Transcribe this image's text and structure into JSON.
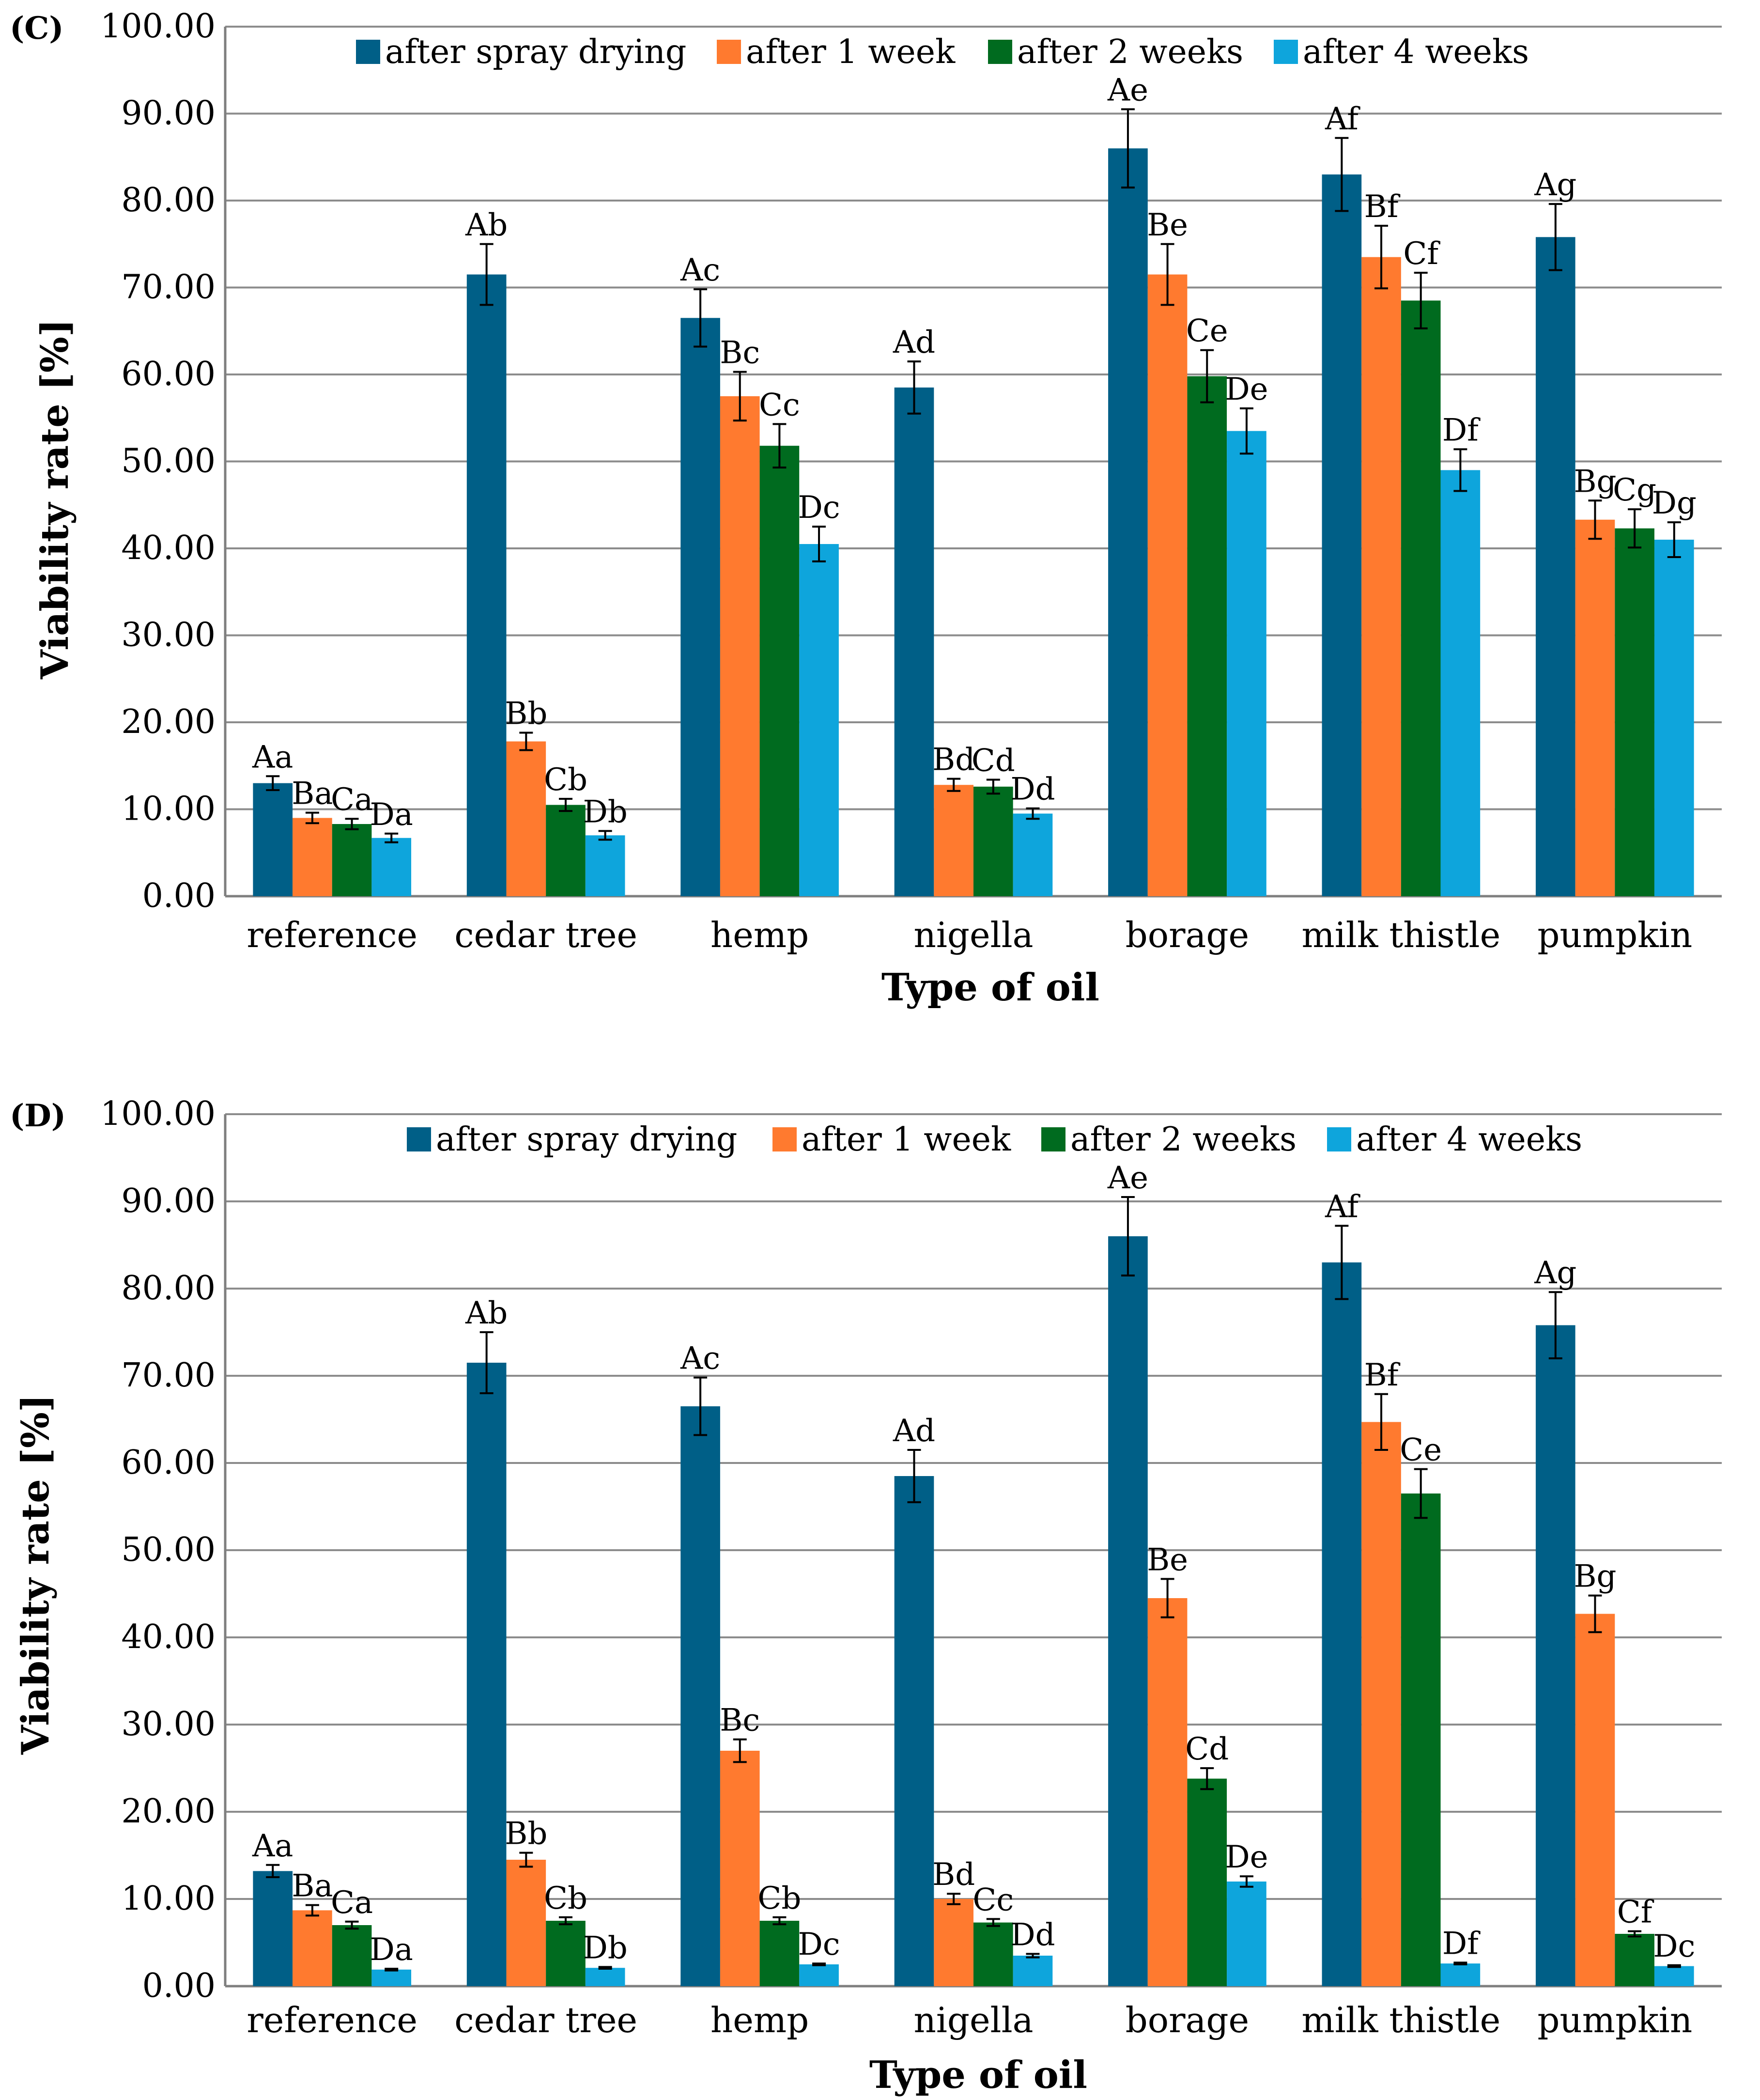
{
  "chart_data": [
    {
      "type": "bar",
      "panel_label": "(C)",
      "categories": [
        "reference",
        "cedar tree",
        "hemp",
        "nigella",
        "borage",
        "milk thistle",
        "pumpkin"
      ],
      "series": [
        {
          "name": "after spray drying",
          "color": "#005f87",
          "values": [
            13.0,
            71.5,
            66.5,
            58.5,
            86.0,
            83.0,
            75.8
          ],
          "errors": [
            0.8,
            3.5,
            3.3,
            3.0,
            4.5,
            4.2,
            3.8
          ],
          "labels": [
            "Aa",
            "Ab",
            "Ac",
            "Ad",
            "Ae",
            "Af",
            "Ag"
          ]
        },
        {
          "name": "after 1 week",
          "color": "#ff7a2f",
          "values": [
            9.0,
            17.8,
            57.5,
            12.8,
            71.5,
            73.5,
            43.3
          ],
          "errors": [
            0.6,
            1.0,
            2.8,
            0.7,
            3.5,
            3.6,
            2.2
          ],
          "labels": [
            "Ba",
            "Bb",
            "Bc",
            "Bd",
            "Be",
            "Bf",
            "Bg"
          ]
        },
        {
          "name": "after 2 weeks",
          "color": "#006b1f",
          "values": [
            8.3,
            10.5,
            51.8,
            12.6,
            59.8,
            68.5,
            42.3
          ],
          "errors": [
            0.6,
            0.7,
            2.5,
            0.8,
            3.0,
            3.2,
            2.2
          ],
          "labels": [
            "Ca",
            "Cb",
            "Cc",
            "Cd",
            "Ce",
            "Cf",
            "Cg"
          ]
        },
        {
          "name": "after 4 weeks",
          "color": "#0ea5dc",
          "values": [
            6.7,
            7.0,
            40.5,
            9.5,
            53.5,
            49.0,
            41.0
          ],
          "errors": [
            0.5,
            0.5,
            2.0,
            0.6,
            2.6,
            2.4,
            2.0
          ],
          "labels": [
            "Da",
            "Db",
            "Dc",
            "Dd",
            "De",
            "Df",
            "Dg"
          ]
        }
      ],
      "xlabel": "Type of oil",
      "ylabel": "Viability rate [%]",
      "ylim": [
        0,
        100
      ],
      "yticks": [
        "0.00",
        "10.00",
        "20.00",
        "30.00",
        "40.00",
        "50.00",
        "60.00",
        "70.00",
        "80.00",
        "90.00",
        "100.00"
      ],
      "grid": true,
      "legend": "top"
    },
    {
      "type": "bar",
      "panel_label": "(D)",
      "categories": [
        "reference",
        "cedar tree",
        "hemp",
        "nigella",
        "borage",
        "milk thistle",
        "pumpkin"
      ],
      "series": [
        {
          "name": "after spray drying",
          "color": "#005f87",
          "values": [
            13.2,
            71.5,
            66.5,
            58.5,
            86.0,
            83.0,
            75.8
          ],
          "errors": [
            0.7,
            3.5,
            3.3,
            3.0,
            4.5,
            4.2,
            3.8
          ],
          "labels": [
            "Aa",
            "Ab",
            "Ac",
            "Ad",
            "Ae",
            "Af",
            "Ag"
          ]
        },
        {
          "name": "after 1 week",
          "color": "#ff7a2f",
          "values": [
            8.7,
            14.5,
            27.0,
            10.0,
            44.5,
            64.7,
            42.7
          ],
          "errors": [
            0.6,
            0.8,
            1.3,
            0.6,
            2.2,
            3.2,
            2.1
          ],
          "labels": [
            "Ba",
            "Bb",
            "Bc",
            "Bd",
            "Be",
            "Bf",
            "Bg"
          ]
        },
        {
          "name": "after 2 weeks",
          "color": "#006b1f",
          "values": [
            7.0,
            7.5,
            7.5,
            7.3,
            23.8,
            56.5,
            6.0
          ],
          "errors": [
            0.4,
            0.4,
            0.4,
            0.4,
            1.2,
            2.8,
            0.3
          ],
          "labels": [
            "Ca",
            "Cb",
            "Cb",
            "Cc",
            "Cd",
            "Ce",
            "Cf"
          ]
        },
        {
          "name": "after 4 weeks",
          "color": "#0ea5dc",
          "values": [
            1.9,
            2.1,
            2.5,
            3.5,
            12.0,
            2.6,
            2.3
          ],
          "errors": [
            0.1,
            0.1,
            0.1,
            0.2,
            0.6,
            0.1,
            0.1
          ],
          "labels": [
            "Da",
            "Db",
            "Dc",
            "Dd",
            "De",
            "Df",
            "Dc"
          ]
        }
      ],
      "xlabel": "Type of oil",
      "ylabel": "Viability rate [%]",
      "ylim": [
        0,
        100
      ],
      "yticks": [
        "0.00",
        "10.00",
        "20.00",
        "30.00",
        "40.00",
        "50.00",
        "60.00",
        "70.00",
        "80.00",
        "90.00",
        "100.00"
      ],
      "grid": true,
      "legend": "top"
    }
  ]
}
